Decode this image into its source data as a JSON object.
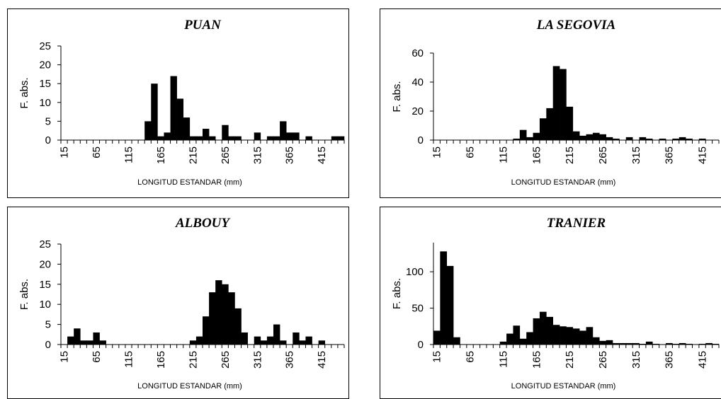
{
  "chart_data": [
    {
      "type": "bar",
      "title": "PUAN",
      "xlabel": "LONGITUD ESTANDAR (mm)",
      "ylabel": "F. abs.",
      "ylim": [
        0,
        25
      ],
      "yticks": [
        "0",
        "5",
        "10",
        "15",
        "20",
        "25"
      ],
      "xtick_labels": [
        "15",
        "65",
        "115",
        "165",
        "215",
        "265",
        "315",
        "365",
        "415"
      ],
      "x": [
        15,
        25,
        35,
        45,
        55,
        65,
        75,
        85,
        95,
        105,
        115,
        125,
        135,
        145,
        155,
        165,
        175,
        185,
        195,
        205,
        215,
        225,
        235,
        245,
        255,
        265,
        275,
        285,
        295,
        305,
        315,
        325,
        335,
        345,
        355,
        365,
        375,
        385,
        395,
        405,
        415,
        425,
        435,
        445
      ],
      "values": [
        0,
        0,
        0,
        0,
        0,
        0,
        0,
        0,
        0,
        0,
        0,
        0,
        0,
        5,
        15,
        1,
        2,
        17,
        11,
        6,
        1,
        1,
        3,
        1,
        0,
        4,
        1,
        1,
        0,
        0,
        2,
        0,
        1,
        1,
        5,
        2,
        2,
        0,
        1,
        0,
        0,
        0,
        1,
        1
      ]
    },
    {
      "type": "bar",
      "title": "LA SEGOVIA",
      "xlabel": "LONGITUD ESTANDAR (mm)",
      "ylabel": "F. abs.",
      "ylim": [
        0,
        60
      ],
      "yticks": [
        "0",
        "20",
        "40",
        "60"
      ],
      "xtick_labels": [
        "15",
        "65",
        "115",
        "165",
        "215",
        "265",
        "315",
        "365",
        "415"
      ],
      "x": [
        15,
        25,
        35,
        45,
        55,
        65,
        75,
        85,
        95,
        105,
        115,
        125,
        135,
        145,
        155,
        165,
        175,
        185,
        195,
        205,
        215,
        225,
        235,
        245,
        255,
        265,
        275,
        285,
        295,
        305,
        315,
        325,
        335,
        345,
        355,
        365,
        375,
        385,
        395,
        405,
        415,
        425,
        435
      ],
      "values": [
        0,
        0,
        0,
        0,
        0,
        0,
        0,
        0,
        0,
        0,
        0,
        0,
        1,
        7,
        2,
        5,
        15,
        22,
        51,
        49,
        23,
        6,
        3,
        4,
        5,
        4,
        2,
        1,
        0,
        2,
        0,
        2,
        1,
        0,
        1,
        0,
        1,
        2,
        1,
        0,
        1,
        0,
        0
      ]
    },
    {
      "type": "bar",
      "title": "ALBOUY",
      "xlabel": "LONGITUD ESTANDAR (mm)",
      "ylabel": "F. abs.",
      "ylim": [
        0,
        25
      ],
      "yticks": [
        "0",
        "5",
        "10",
        "15",
        "20",
        "25"
      ],
      "xtick_labels": [
        "15",
        "65",
        "115",
        "165",
        "215",
        "265",
        "315",
        "365",
        "415"
      ],
      "x": [
        15,
        25,
        35,
        45,
        55,
        65,
        75,
        85,
        95,
        105,
        115,
        125,
        135,
        145,
        155,
        165,
        175,
        185,
        195,
        205,
        215,
        225,
        235,
        245,
        255,
        265,
        275,
        285,
        295,
        305,
        315,
        325,
        335,
        345,
        355,
        365,
        375,
        385,
        395,
        405,
        415,
        425,
        435,
        445
      ],
      "values": [
        0,
        2,
        4,
        1,
        1,
        3,
        1,
        0,
        0,
        0,
        0,
        0,
        0,
        0,
        0,
        0,
        0,
        0,
        0,
        0,
        1,
        2,
        7,
        13,
        16,
        15,
        13,
        9,
        3,
        0,
        2,
        1,
        2,
        5,
        1,
        0,
        3,
        1,
        2,
        0,
        1,
        0,
        0,
        0
      ]
    },
    {
      "type": "bar",
      "title": "TRANIER",
      "xlabel": "LONGITUD ESTANDAR (mm)",
      "ylabel": "F. abs.",
      "ylim": [
        0,
        140
      ],
      "yticks": [
        "0",
        "50",
        "100"
      ],
      "xtick_labels": [
        "15",
        "65",
        "115",
        "165",
        "215",
        "265",
        "315",
        "365",
        "415"
      ],
      "x": [
        15,
        25,
        35,
        45,
        55,
        65,
        75,
        85,
        95,
        105,
        115,
        125,
        135,
        145,
        155,
        165,
        175,
        185,
        195,
        205,
        215,
        225,
        235,
        245,
        255,
        265,
        275,
        285,
        295,
        305,
        315,
        325,
        335,
        345,
        355,
        365,
        375,
        385,
        395,
        405,
        415,
        425,
        435
      ],
      "values": [
        19,
        128,
        108,
        10,
        0,
        0,
        0,
        0,
        0,
        0,
        4,
        15,
        26,
        8,
        17,
        36,
        45,
        38,
        27,
        25,
        24,
        22,
        19,
        24,
        10,
        5,
        6,
        2,
        2,
        2,
        2,
        1,
        4,
        1,
        0,
        2,
        1,
        2,
        1,
        0,
        1,
        2,
        1
      ]
    }
  ]
}
